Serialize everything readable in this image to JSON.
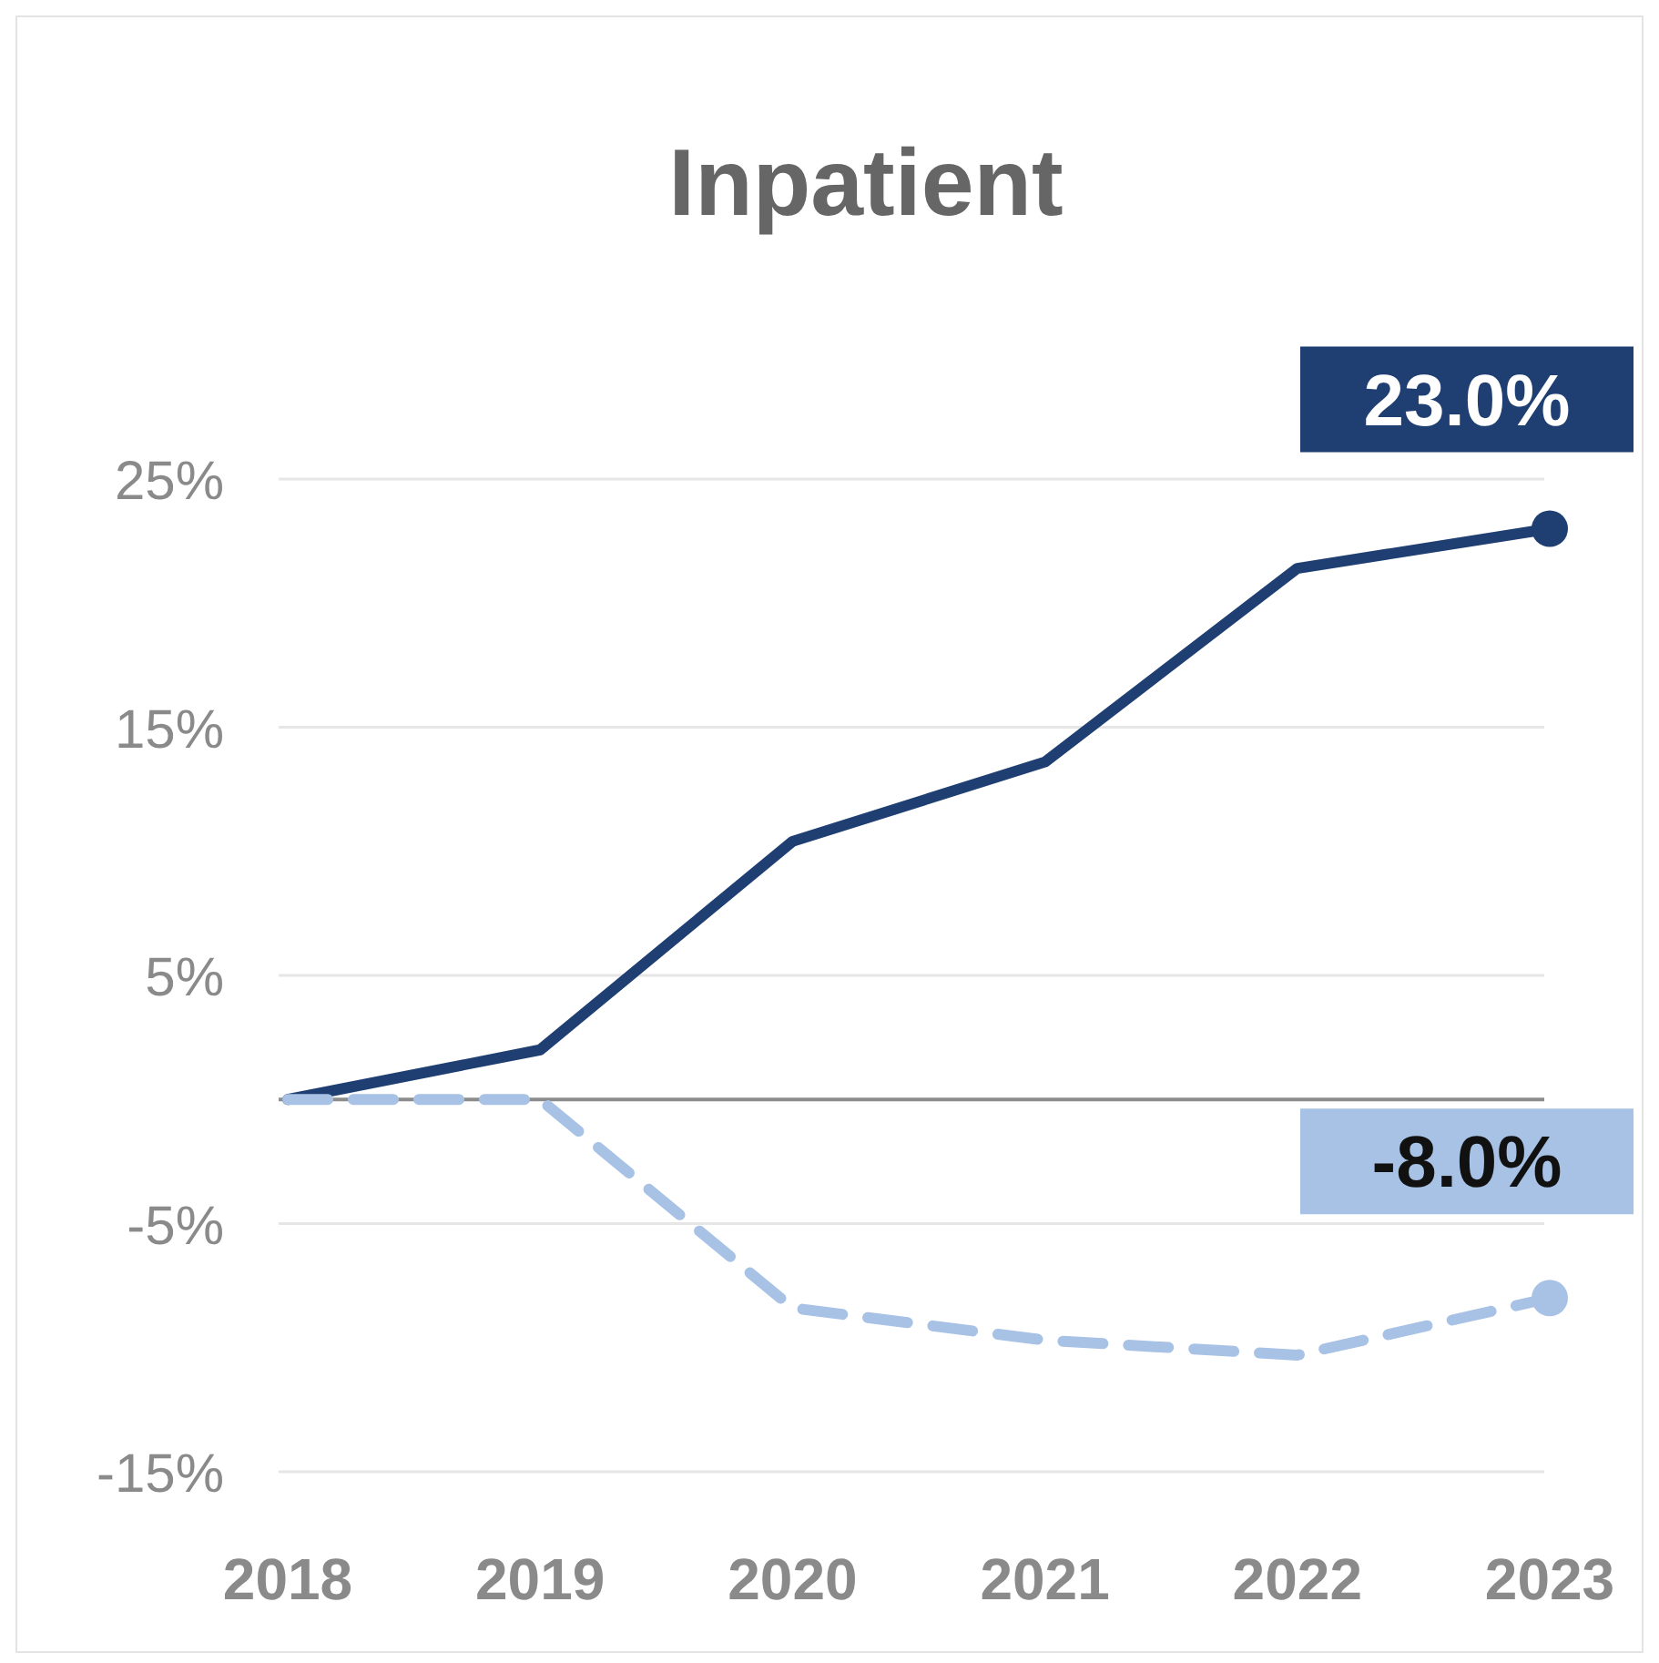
{
  "chart_data": {
    "type": "line",
    "title": "Inpatient",
    "categories": [
      "2018",
      "2019",
      "2020",
      "2021",
      "2022",
      "2023"
    ],
    "series": [
      {
        "color": "#1f3f73",
        "values": [
          0,
          2.0,
          10.4,
          13.6,
          21.4,
          23.0
        ],
        "value_labels": [
          null,
          null,
          null,
          null,
          null,
          "23.0%"
        ],
        "line_style": "solid"
      },
      {
        "color": "#a8c2e6",
        "values": [
          0,
          0,
          -8.4,
          -9.7,
          -10.3,
          -8.0
        ],
        "value_labels": [
          null,
          null,
          null,
          null,
          null,
          "-8.0%"
        ],
        "line_style": "dashed"
      }
    ],
    "ylim": [
      -15,
      25
    ],
    "yticks": [
      {
        "value": 25,
        "label": "25%"
      },
      {
        "value": 15,
        "label": "15%"
      },
      {
        "value": 5,
        "label": "5%"
      },
      {
        "value": -5,
        "label": "-5%"
      },
      {
        "value": -15,
        "label": "-15%"
      }
    ],
    "grid": "y",
    "marker": "none",
    "ref_lines": [
      {
        "axis": "y",
        "value": 0,
        "color": "#8c8c8c"
      }
    ]
  }
}
